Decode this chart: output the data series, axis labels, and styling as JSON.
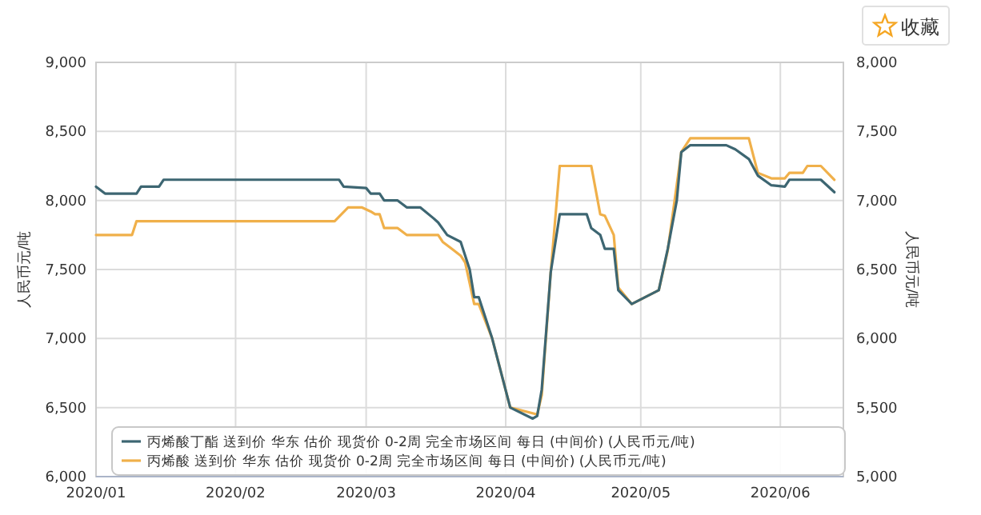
{
  "chart_data": {
    "type": "line",
    "ylabel": "人民币元/吨",
    "y2label": "人民币元/吨",
    "xlim": [
      "2020-01-01",
      "2020-06-15"
    ],
    "xticks": [
      {
        "value": "2020-01-01",
        "label": "2020/01"
      },
      {
        "value": "2020-02-01",
        "label": "2020/02"
      },
      {
        "value": "2020-03-01",
        "label": "2020/03"
      },
      {
        "value": "2020-04-01",
        "label": "2020/04"
      },
      {
        "value": "2020-05-01",
        "label": "2020/05"
      },
      {
        "value": "2020-06-01",
        "label": "2020/06"
      }
    ],
    "ylim": [
      6000,
      9000
    ],
    "yticks": [
      {
        "value": 6000,
        "label": "6,000"
      },
      {
        "value": 6500,
        "label": "6,500"
      },
      {
        "value": 7000,
        "label": "7,000"
      },
      {
        "value": 7500,
        "label": "7,500"
      },
      {
        "value": 8000,
        "label": "8,000"
      },
      {
        "value": 8500,
        "label": "8,500"
      },
      {
        "value": 9000,
        "label": "9,000"
      }
    ],
    "y2lim": [
      5000,
      8000
    ],
    "y2ticks": [
      {
        "value": 5000,
        "label": "5,000"
      },
      {
        "value": 5500,
        "label": "5,500"
      },
      {
        "value": 6000,
        "label": "6,000"
      },
      {
        "value": 6500,
        "label": "6,500"
      },
      {
        "value": 7000,
        "label": "7,000"
      },
      {
        "value": 7500,
        "label": "7,500"
      },
      {
        "value": 8000,
        "label": "8,000"
      }
    ],
    "grid": true,
    "legend": "bottom left",
    "annotations": [
      "收藏"
    ],
    "series": [
      {
        "name": "丙烯酸丁酯 送到价 华东 估价 现货价 0-2周 完全市场区间 每日 (中间价) (人民币元/吨)",
        "color": "#3d6672",
        "x": [
          "2020-01-01",
          "2020-01-03",
          "2020-01-10",
          "2020-01-11",
          "2020-01-15",
          "2020-01-16",
          "2020-02-24",
          "2020-02-25",
          "2020-03-01",
          "2020-03-02",
          "2020-03-04",
          "2020-03-05",
          "2020-03-08",
          "2020-03-10",
          "2020-03-13",
          "2020-03-16",
          "2020-03-17",
          "2020-03-19",
          "2020-03-22",
          "2020-03-24",
          "2020-03-25",
          "2020-03-26",
          "2020-03-29",
          "2020-04-02",
          "2020-04-07",
          "2020-04-08",
          "2020-04-09",
          "2020-04-11",
          "2020-04-13",
          "2020-04-19",
          "2020-04-20",
          "2020-04-22",
          "2020-04-23",
          "2020-04-25",
          "2020-04-26",
          "2020-04-29",
          "2020-05-05",
          "2020-05-07",
          "2020-05-09",
          "2020-05-10",
          "2020-05-12",
          "2020-05-20",
          "2020-05-22",
          "2020-05-25",
          "2020-05-27",
          "2020-05-30",
          "2020-06-02",
          "2020-06-03",
          "2020-06-10",
          "2020-06-13"
        ],
        "values": [
          8100,
          8050,
          8050,
          8100,
          8100,
          8150,
          8150,
          8100,
          8090,
          8050,
          8050,
          8000,
          8000,
          7950,
          7950,
          7870,
          7840,
          7750,
          7700,
          7500,
          7300,
          7300,
          7000,
          6500,
          6420,
          6440,
          6630,
          7480,
          7900,
          7900,
          7800,
          7750,
          7650,
          7650,
          7350,
          7250,
          7350,
          7650,
          8000,
          8350,
          8400,
          8400,
          8370,
          8300,
          8180,
          8110,
          8100,
          8150,
          8150,
          8060
        ]
      },
      {
        "name": "丙烯酸 送到价 华东 估价 现货价 0-2周 完全市场区间 每日 (中间价) (人民币元/吨)",
        "color": "#f0b04a",
        "axis": "y2",
        "x": [
          "2020-01-01",
          "2020-01-09",
          "2020-01-10",
          "2020-02-23",
          "2020-02-26",
          "2020-02-29",
          "2020-03-02",
          "2020-03-03",
          "2020-03-04",
          "2020-03-05",
          "2020-03-08",
          "2020-03-10",
          "2020-03-17",
          "2020-03-18",
          "2020-03-20",
          "2020-03-22",
          "2020-03-23",
          "2020-03-24",
          "2020-03-25",
          "2020-03-26",
          "2020-03-29",
          "2020-04-02",
          "2020-04-08",
          "2020-04-09",
          "2020-04-11",
          "2020-04-13",
          "2020-04-20",
          "2020-04-22",
          "2020-04-23",
          "2020-04-25",
          "2020-04-26",
          "2020-04-29",
          "2020-05-05",
          "2020-05-07",
          "2020-05-10",
          "2020-05-12",
          "2020-05-25",
          "2020-05-27",
          "2020-05-30",
          "2020-06-02",
          "2020-06-03",
          "2020-06-06",
          "2020-06-07",
          "2020-06-10",
          "2020-06-13"
        ],
        "values": [
          6750,
          6750,
          6850,
          6850,
          6950,
          6950,
          6920,
          6900,
          6900,
          6800,
          6800,
          6750,
          6750,
          6700,
          6650,
          6600,
          6550,
          6400,
          6250,
          6250,
          6000,
          5500,
          5450,
          5590,
          6480,
          7250,
          7250,
          6900,
          6890,
          6750,
          6370,
          6250,
          6350,
          6640,
          7350,
          7450,
          7450,
          7200,
          7160,
          7160,
          7200,
          7200,
          7250,
          7250,
          7150
        ]
      }
    ]
  }
}
